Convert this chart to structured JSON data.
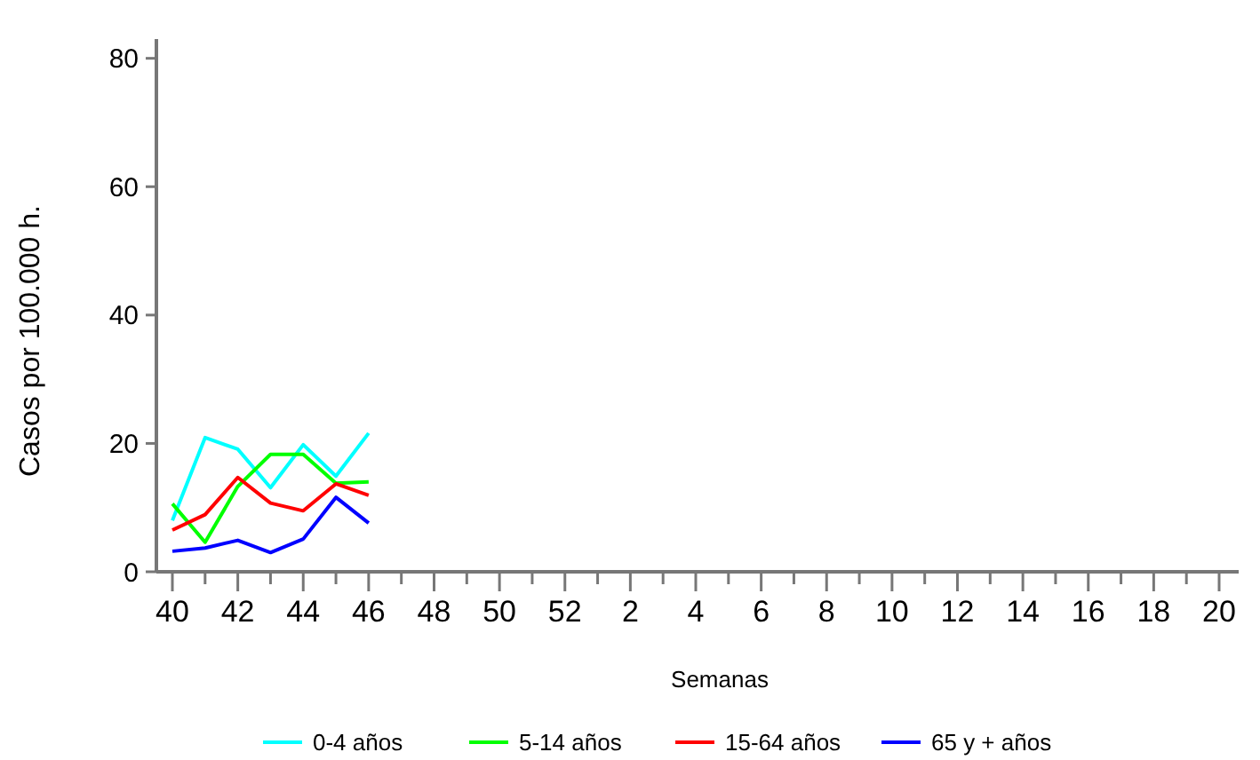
{
  "chart_data": {
    "type": "line",
    "xlabel": "Semanas",
    "ylabel": "Casos por 100.000 h.",
    "categories": [
      "40",
      null,
      "42",
      null,
      "44",
      null,
      "46",
      null,
      "48",
      null,
      "50",
      null,
      "52",
      null,
      "2",
      null,
      "4",
      null,
      "6",
      null,
      "8",
      null,
      "10",
      null,
      "12",
      null,
      "14",
      null,
      "16",
      null,
      "18",
      null,
      "20"
    ],
    "series": [
      {
        "name": "0-4 años",
        "color": "#00ffff",
        "values": [
          8.0,
          20.9,
          19.1,
          13.1,
          19.8,
          14.9,
          21.6,
          null,
          null,
          null,
          null,
          null,
          null,
          null,
          null,
          null,
          null,
          null,
          null,
          null,
          null,
          null,
          null,
          null,
          null,
          null,
          null,
          null,
          null,
          null,
          null,
          null,
          null
        ]
      },
      {
        "name": "5-14 años",
        "color": "#00ff00",
        "values": [
          10.6,
          4.6,
          13.3,
          18.3,
          18.3,
          13.8,
          14.0,
          null,
          null,
          null,
          null,
          null,
          null,
          null,
          null,
          null,
          null,
          null,
          null,
          null,
          null,
          null,
          null,
          null,
          null,
          null,
          null,
          null,
          null,
          null,
          null,
          null,
          null
        ]
      },
      {
        "name": "15-64 años",
        "color": "#ff0000",
        "values": [
          6.5,
          8.9,
          14.7,
          10.7,
          9.5,
          13.7,
          11.9,
          null,
          null,
          null,
          null,
          null,
          null,
          null,
          null,
          null,
          null,
          null,
          null,
          null,
          null,
          null,
          null,
          null,
          null,
          null,
          null,
          null,
          null,
          null,
          null,
          null,
          null
        ]
      },
      {
        "name": "65 y + años",
        "color": "#0000ff",
        "values": [
          3.2,
          3.7,
          4.9,
          3.0,
          5.1,
          11.6,
          7.6,
          null,
          null,
          null,
          null,
          null,
          null,
          null,
          null,
          null,
          null,
          null,
          null,
          null,
          null,
          null,
          null,
          null,
          null,
          null,
          null,
          null,
          null,
          null,
          null,
          null,
          null
        ]
      }
    ],
    "ylim": [
      0,
      83
    ],
    "yticks": [
      0,
      20,
      40,
      60,
      80
    ],
    "grid": false,
    "legend": "bottom",
    "marker": "none",
    "line_style": "solid"
  }
}
